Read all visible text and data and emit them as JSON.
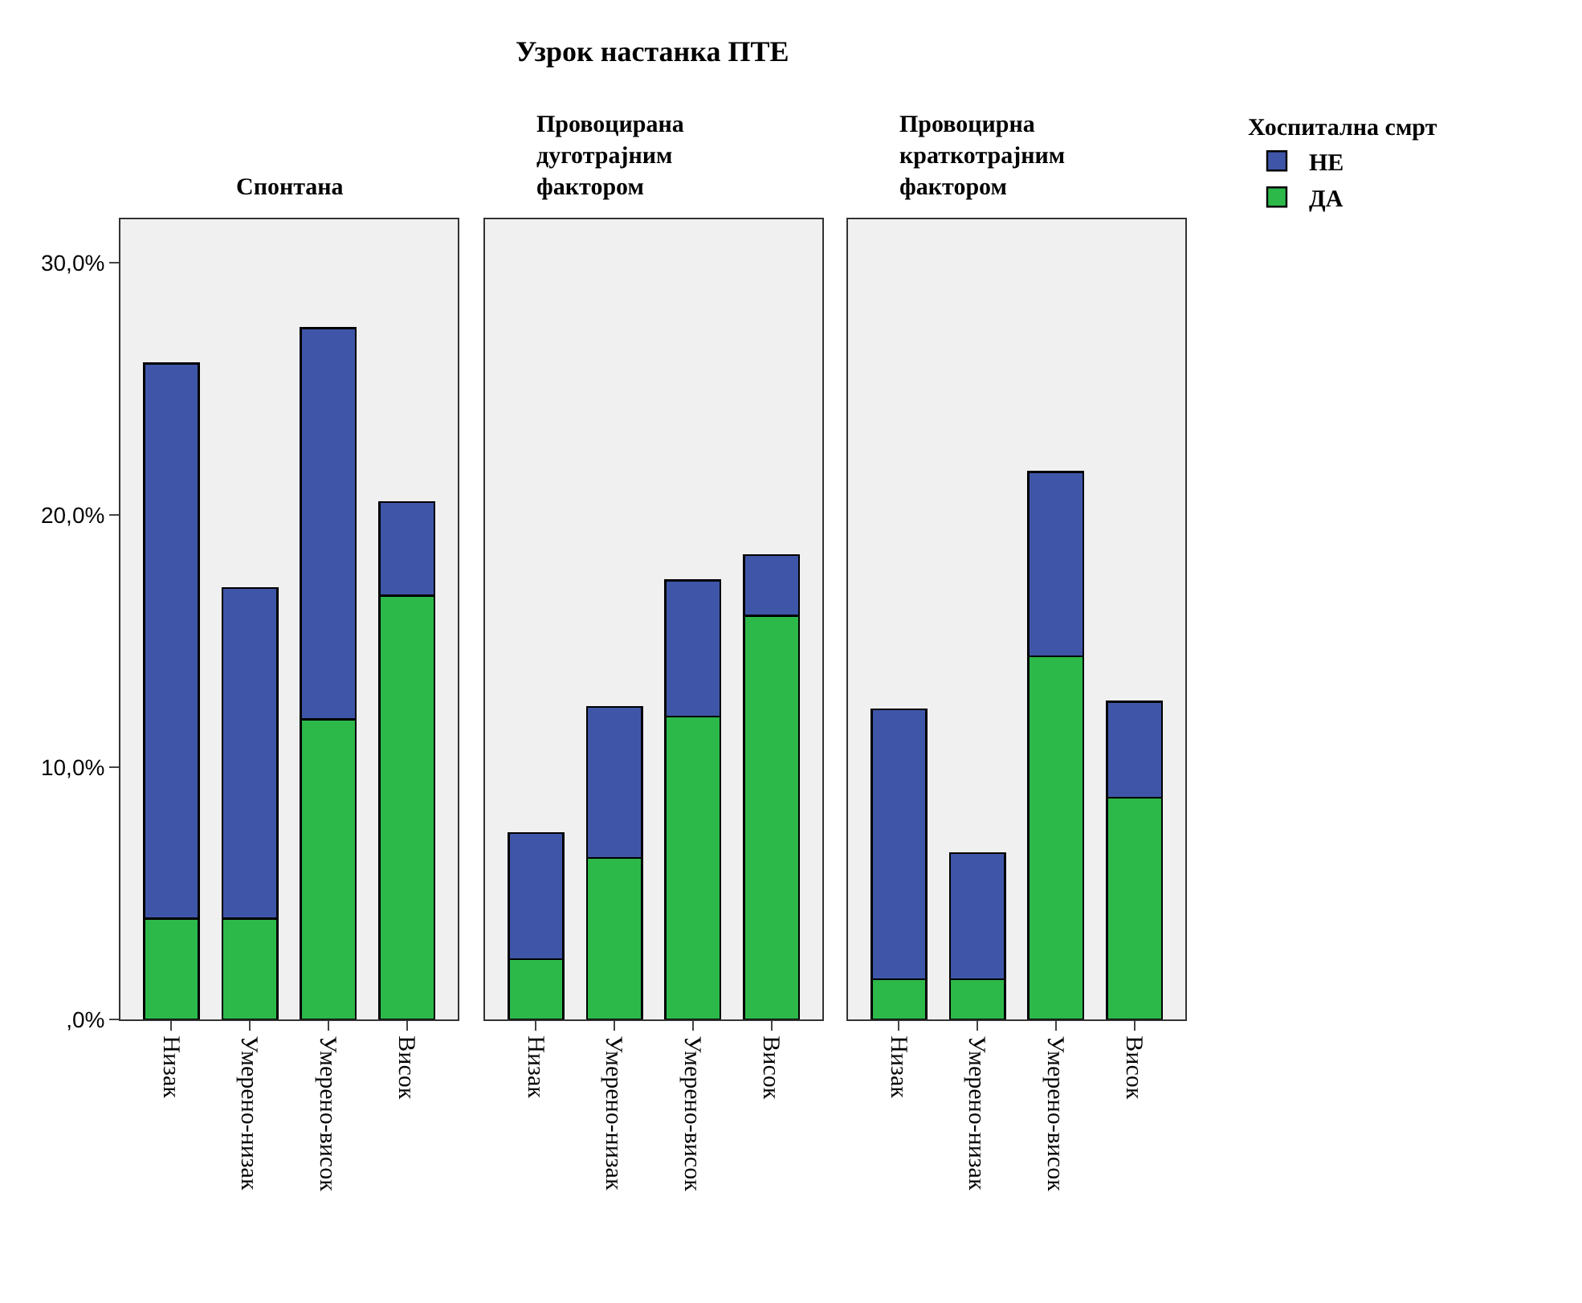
{
  "chart_data": [
    {
      "type": "bar",
      "stacked": true,
      "title": "Спонтана",
      "annotations": [
        "Узрок настанка ПТЕ"
      ],
      "categories": [
        "Низак",
        "Умерено-низак",
        "Умерено-висок",
        "Висок"
      ],
      "ylim": [
        0,
        31.7
      ],
      "yticks": [
        {
          "value": 0,
          "label": ",0%"
        },
        {
          "value": 10,
          "label": "10,0%"
        },
        {
          "value": 20,
          "label": "20,0%"
        },
        {
          "value": 30,
          "label": "30,0%"
        }
      ],
      "grid": false,
      "legend": "top right",
      "legend_title": "Хоспитална смрт",
      "series": [
        {
          "name": "ДА",
          "color": "#2db84a",
          "values": [
            4.0,
            4.0,
            11.9,
            16.8
          ]
        },
        {
          "name": "НЕ",
          "color": "#3f56a8",
          "values": [
            22.0,
            13.1,
            15.5,
            3.7
          ]
        }
      ]
    },
    {
      "type": "bar",
      "stacked": true,
      "title": "Провоцирана\nдуготрајним\nфактором",
      "categories": [
        "Низак",
        "Умерено-низак",
        "Умерено-висок",
        "Висок"
      ],
      "ylim": [
        0,
        31.7
      ],
      "tick_labels": "x",
      "grid": false,
      "series": [
        {
          "color": "#2db84a",
          "values": [
            2.4,
            6.4,
            12.0,
            16.0
          ]
        },
        {
          "color": "#3f56a8",
          "values": [
            5.0,
            6.0,
            5.4,
            2.4
          ]
        }
      ]
    },
    {
      "type": "bar",
      "stacked": true,
      "title": "Провоцирна\nкраткотрајним\nфактором",
      "categories": [
        "Низак",
        "Умерено-низак",
        "Умерено-висок",
        "Висок"
      ],
      "ylim": [
        0,
        31.7
      ],
      "tick_labels": "x",
      "grid": false,
      "series": [
        {
          "color": "#2db84a",
          "values": [
            1.6,
            1.6,
            14.4,
            8.8
          ]
        },
        {
          "color": "#3f56a8",
          "values": [
            10.7,
            5.0,
            7.3,
            3.8
          ]
        }
      ]
    }
  ]
}
